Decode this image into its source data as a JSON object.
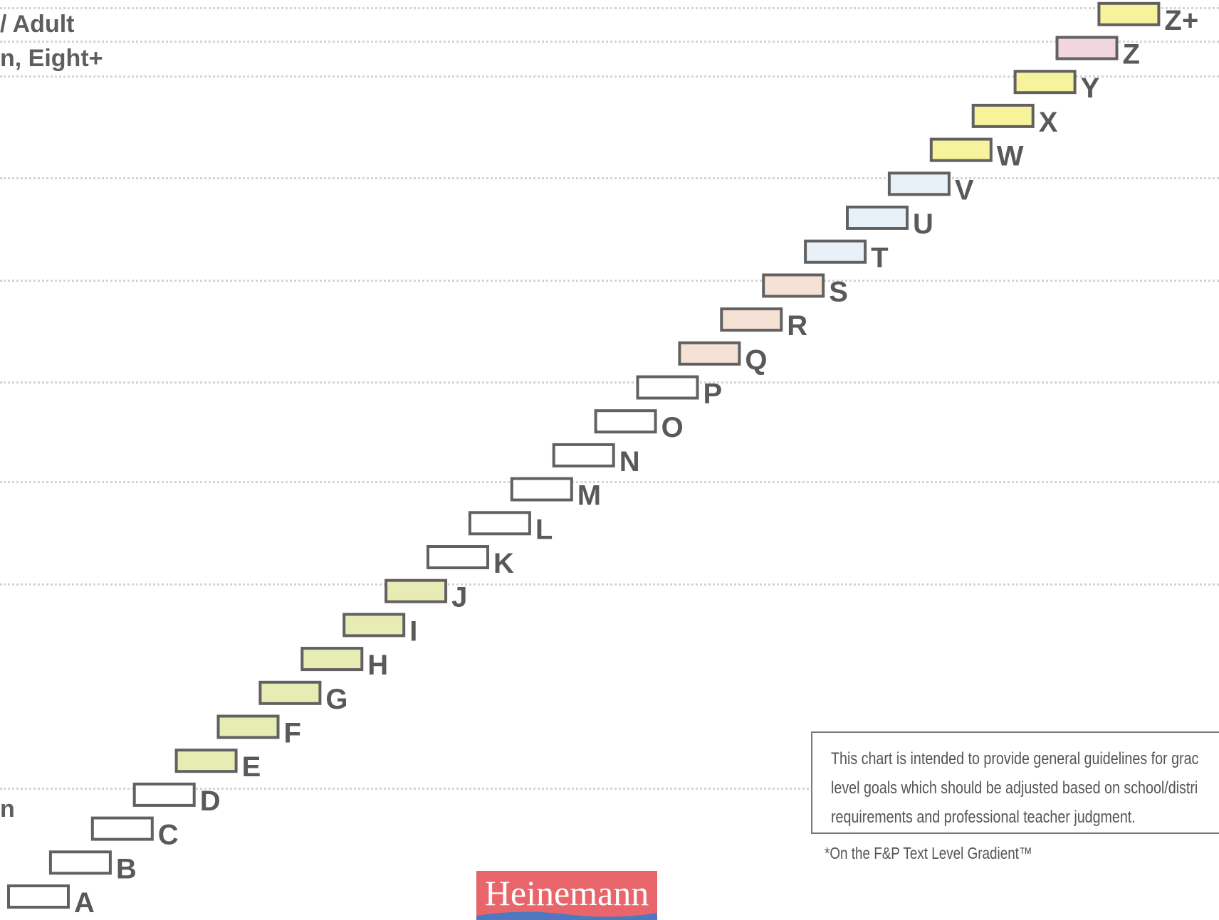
{
  "chart_data": {
    "type": "bar",
    "categories": [
      "A",
      "B",
      "C",
      "D",
      "E",
      "F",
      "G",
      "H",
      "I",
      "J",
      "K",
      "L",
      "M",
      "N",
      "O",
      "P",
      "Q",
      "R",
      "S",
      "T",
      "U",
      "V",
      "W",
      "X",
      "Y",
      "Z",
      "Z+"
    ],
    "values": [
      1,
      2,
      3,
      4,
      5,
      6,
      7,
      8,
      9,
      10,
      11,
      12,
      13,
      14,
      15,
      16,
      17,
      18,
      19,
      20,
      21,
      22,
      23,
      24,
      25,
      26,
      27
    ],
    "bar_colors": [
      "#ffffff",
      "#ffffff",
      "#ffffff",
      "#ffffff",
      "#e6ecb4",
      "#e6ecb4",
      "#e6ecb4",
      "#e6ecb4",
      "#e6ecb4",
      "#e6ecb4",
      "#ffffff",
      "#ffffff",
      "#ffffff",
      "#ffffff",
      "#ffffff",
      "#ffffff",
      "#f6e1d6",
      "#f6e1d6",
      "#f6e1d6",
      "#e8f0f8",
      "#e8f0f8",
      "#e8f0f8",
      "#f7f39c",
      "#f7f39c",
      "#f7f39c",
      "#f2d6df",
      "#f7f39c"
    ],
    "grid": true
  },
  "row_labels": [
    "/ Adult",
    "n, Eight+",
    "n"
  ],
  "note": [
    "This chart is intended to provide general guidelines for grac",
    "level goals which should be adjusted based on school/distri",
    "requirements and professional teacher judgment."
  ],
  "footnote": "*On the F&P Text Level Gradient™",
  "logo": "Heinemann",
  "colors": {
    "bar_border": "#616161",
    "label": "#595959",
    "logo_red": "#e8666b",
    "logo_blue": "#4f78c0"
  }
}
